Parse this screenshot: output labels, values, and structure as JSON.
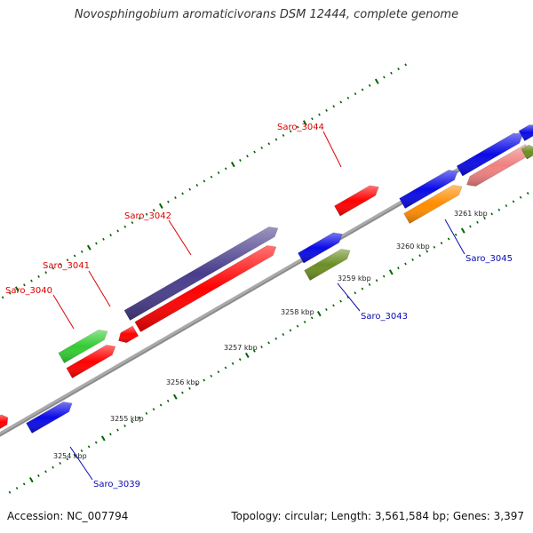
{
  "title": "Novosphingobium aromaticivorans DSM 12444, complete genome",
  "accession_text": "Accession: NC_007794",
  "summary_text": "Topology: circular; Length: 3,561,584 bp; Genes: 3,397",
  "ticks": [
    "3254 kbp",
    "3255 kbp",
    "3256 kbp",
    "3257 kbp",
    "3258 kbp",
    "3259 kbp",
    "3260 kbp",
    "3261 kbp"
  ],
  "genes": [
    {
      "label": "Saro_3039",
      "color": "#0a0ae6",
      "label_color": "#0a0ab4"
    },
    {
      "label": "Saro_3040",
      "color": "#ff0000",
      "label_color": "#dd0000"
    },
    {
      "label": "Saro_3041",
      "color": "#ff0000",
      "label_color": "#dd0000"
    },
    {
      "label": "Saro_3042",
      "color": "#ff0000",
      "label_color": "#dd0000"
    },
    {
      "label": "Saro_3043",
      "color": "#6b8e23",
      "label_color": "#0a0ab4"
    },
    {
      "label": "Saro_3044",
      "color": "#ff0000",
      "label_color": "#dd0000"
    },
    {
      "label": "Saro_3045",
      "color": "#ff8c00",
      "label_color": "#0a0ab4"
    }
  ],
  "other_features": [
    {
      "name": "upper-green-feature",
      "color": "#33cc33"
    },
    {
      "name": "upper-purple-feature",
      "color": "#483d8b"
    },
    {
      "name": "small-red-feature",
      "color": "#ff0000"
    },
    {
      "name": "blue-feature-a",
      "color": "#0a0ae6"
    },
    {
      "name": "blue-feature-b",
      "color": "#0a0ae6"
    },
    {
      "name": "blue-feature-c",
      "color": "#0a0ae6"
    },
    {
      "name": "blue-feature-d",
      "color": "#0a0ae6"
    },
    {
      "name": "pink-feature",
      "color": "#f08080"
    },
    {
      "name": "edge-red-feature",
      "color": "#ff0000"
    },
    {
      "name": "edge-green-feature",
      "color": "#6b8e23"
    }
  ],
  "colors": {
    "backbone": "#888888",
    "tick_marks": "#006400"
  }
}
